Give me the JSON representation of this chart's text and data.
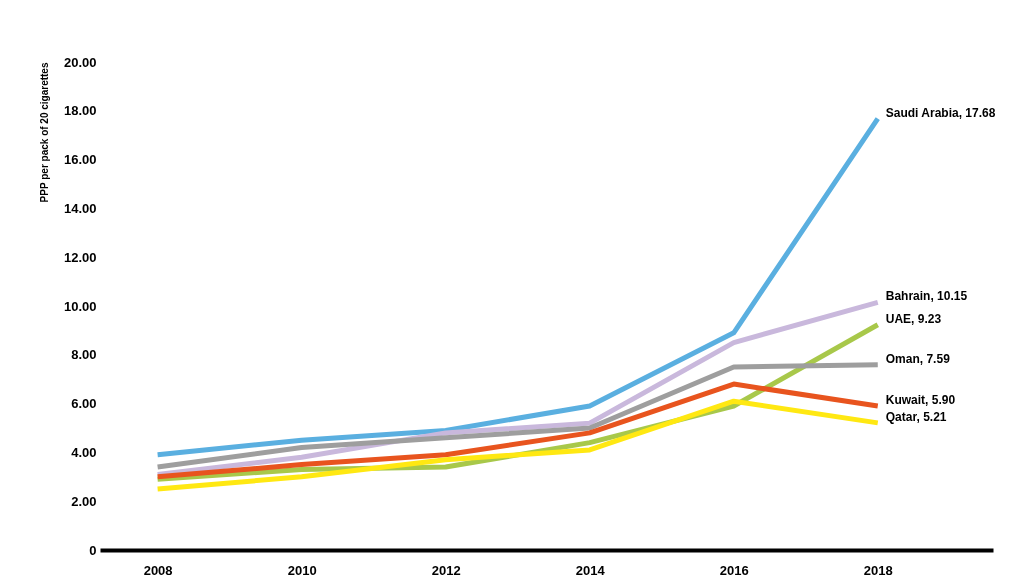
{
  "chart_data": {
    "type": "line",
    "ylabel": "PPP per pack of 20 cigarettes",
    "x": [
      2008,
      2010,
      2012,
      2014,
      2016,
      2018
    ],
    "xlim": [
      2007.2,
      2019.6
    ],
    "xticks": [
      2008,
      2010,
      2012,
      2014,
      2016,
      2018
    ],
    "ylim": [
      0,
      20
    ],
    "yticks": [
      0,
      {
        "value": 2,
        "label": "2.00"
      },
      {
        "value": 4,
        "label": "4.00"
      },
      {
        "value": 6,
        "label": "6.00"
      },
      {
        "value": 8,
        "label": "8.00"
      },
      {
        "value": 10,
        "label": "10.00"
      },
      {
        "value": 12,
        "label": "12.00"
      },
      {
        "value": 14,
        "label": "14.00"
      },
      {
        "value": 16,
        "label": "16.00"
      },
      {
        "value": 18,
        "label": "18.00"
      },
      {
        "value": 20,
        "label": "20.00"
      }
    ],
    "grid": false,
    "legend": false,
    "series": [
      {
        "name": "Saudi Arabia,",
        "color": "#5aafe0",
        "values": [
          3.9,
          4.5,
          4.9,
          5.9,
          8.9,
          17.68
        ],
        "value_labels": [
          null,
          null,
          null,
          null,
          null,
          "17.68"
        ]
      },
      {
        "name": "Bahrain,",
        "color": "#c9b8dc",
        "values": [
          3.1,
          3.8,
          4.8,
          5.2,
          8.5,
          10.15
        ],
        "value_labels": [
          null,
          null,
          null,
          null,
          null,
          "10.15"
        ]
      },
      {
        "name": "UAE,",
        "color": "#a8c84a",
        "values": [
          2.9,
          3.3,
          3.4,
          4.4,
          5.9,
          9.23
        ],
        "value_labels": [
          null,
          null,
          null,
          null,
          null,
          "9.23"
        ]
      },
      {
        "name": "Oman,",
        "color": "#9e9e9e",
        "values": [
          3.4,
          4.2,
          4.6,
          5.0,
          7.5,
          7.59
        ],
        "value_labels": [
          null,
          null,
          null,
          null,
          null,
          "7.59"
        ]
      },
      {
        "name": "Kuwait,",
        "color": "#e8541e",
        "values": [
          3.0,
          3.5,
          3.9,
          4.8,
          6.8,
          5.9
        ],
        "value_labels": [
          null,
          null,
          null,
          null,
          null,
          "5.90"
        ]
      },
      {
        "name": "Qatar,",
        "color": "#ffe812",
        "values": [
          2.5,
          3.0,
          3.7,
          4.1,
          6.1,
          5.21
        ],
        "value_labels": [
          null,
          null,
          null,
          null,
          null,
          "5.21"
        ]
      }
    ]
  }
}
